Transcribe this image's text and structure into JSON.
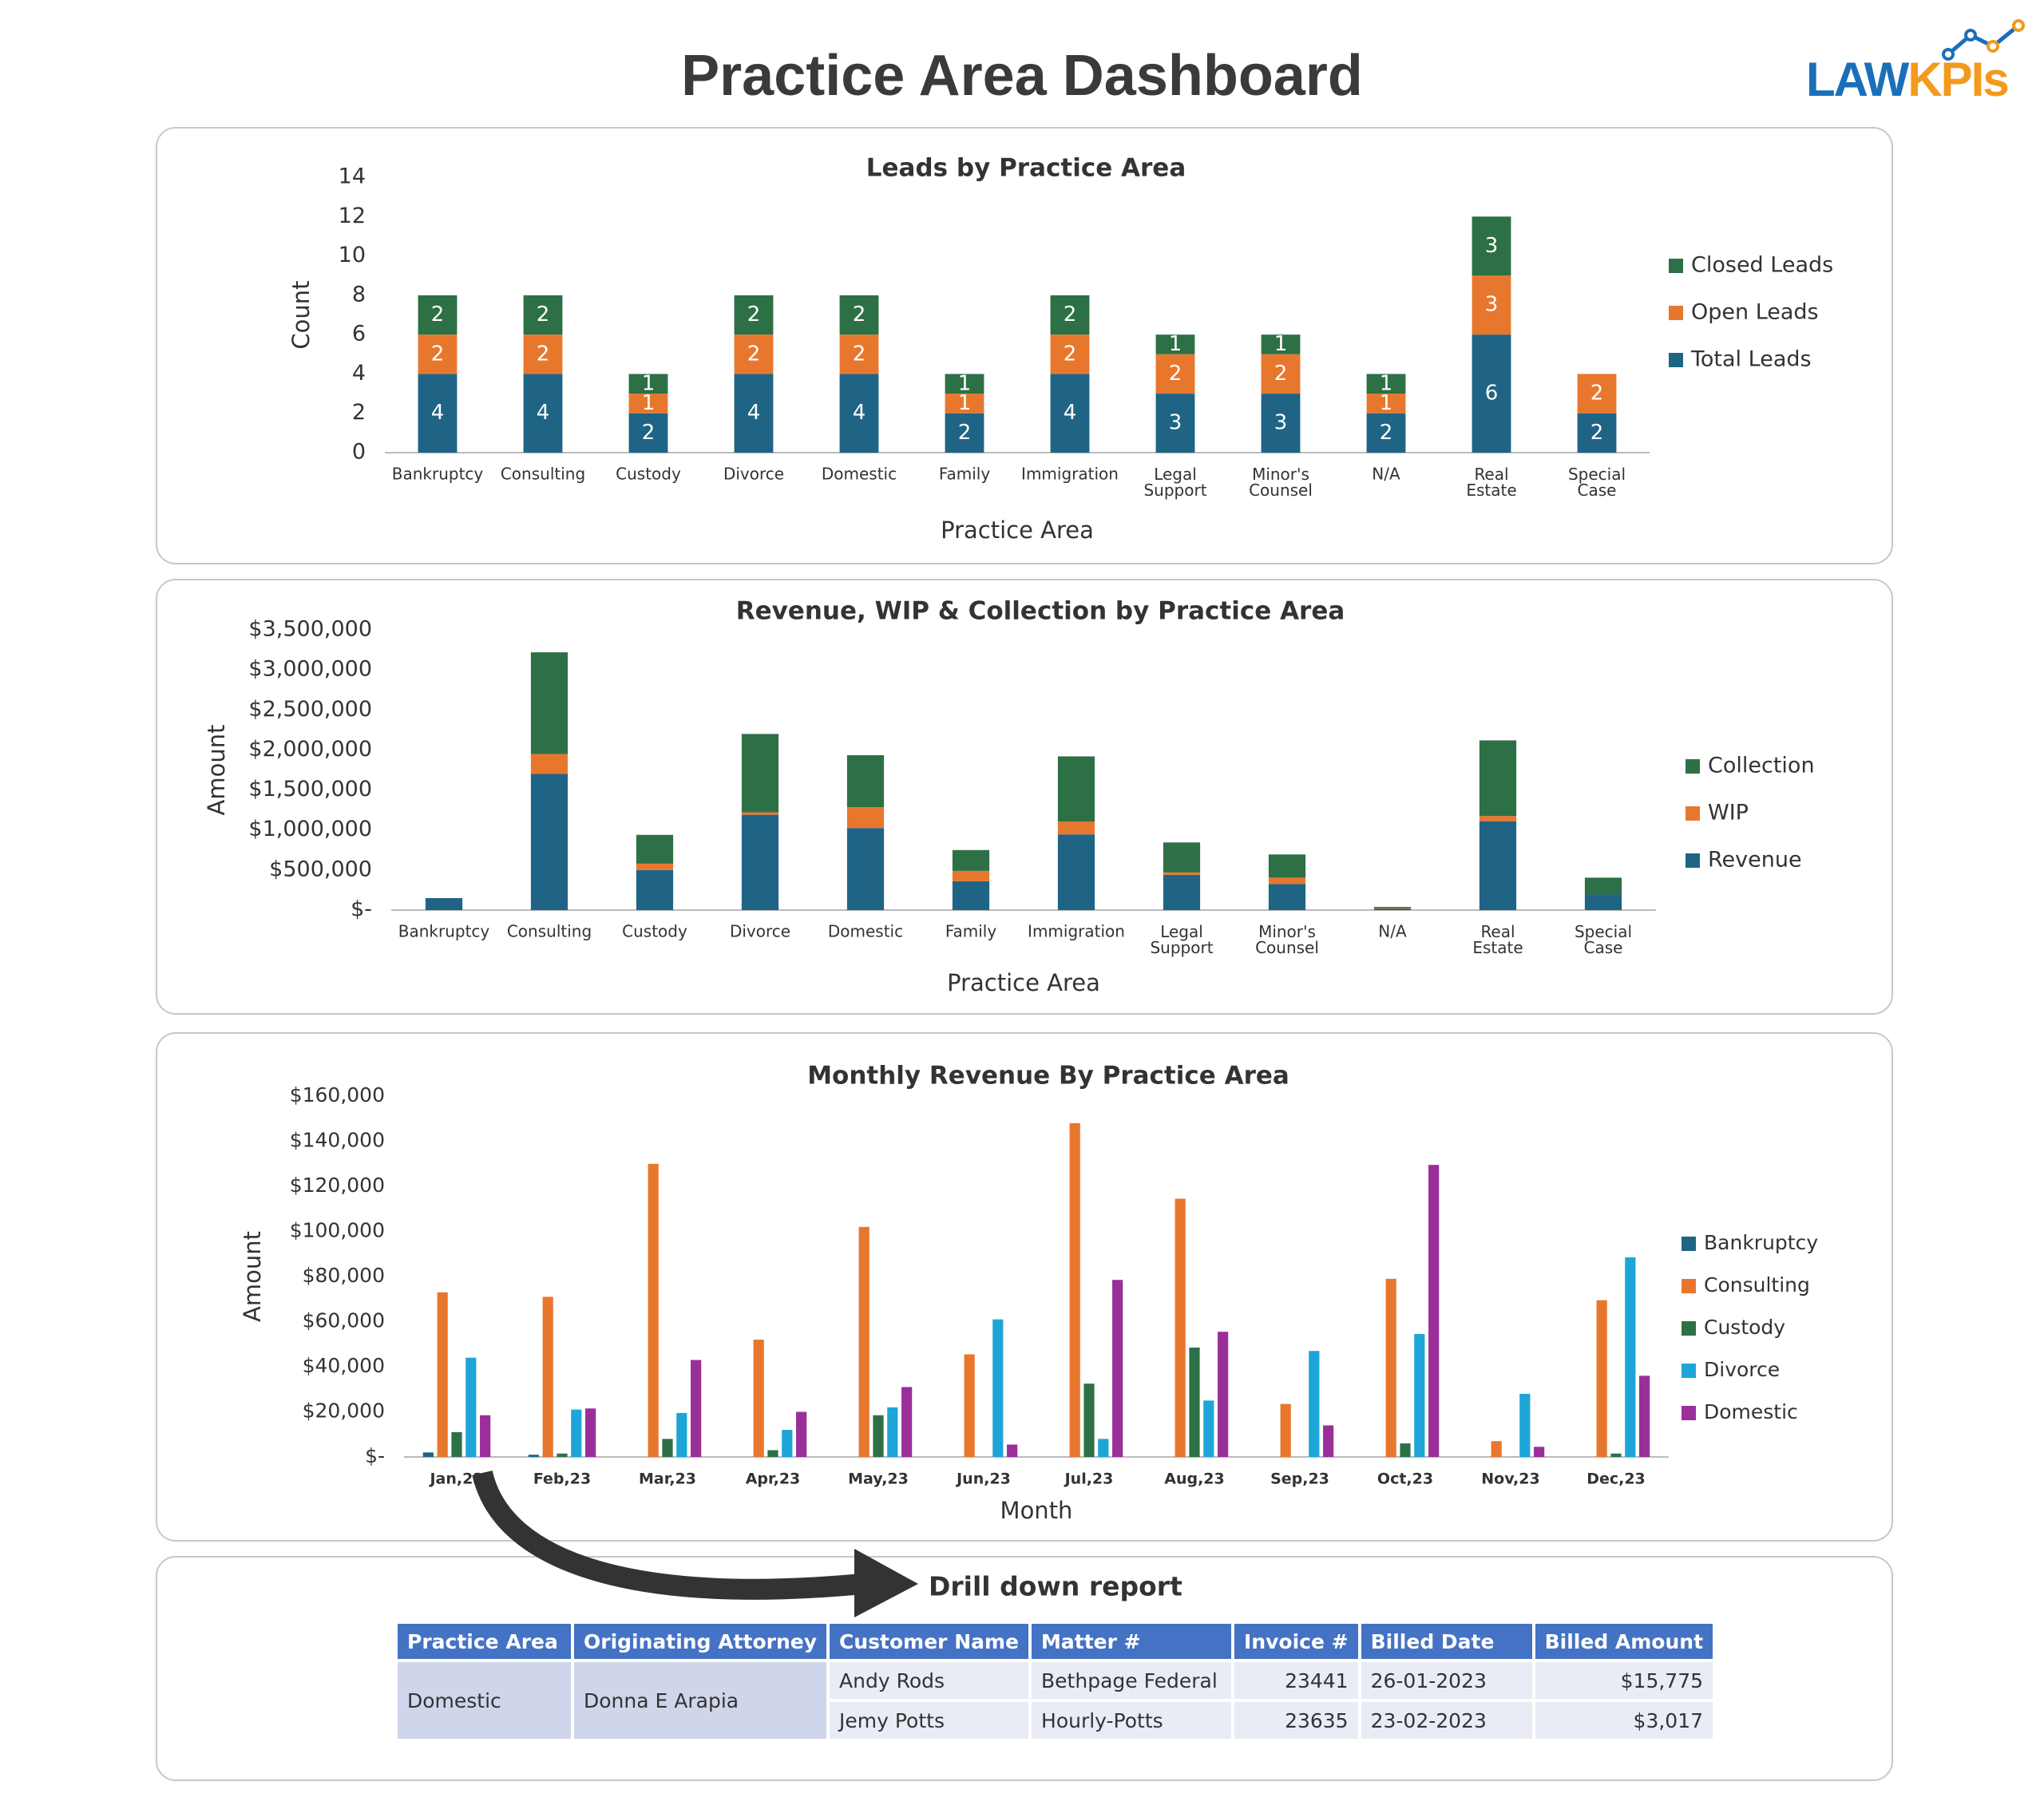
{
  "header": {
    "title": "Practice Area Dashboard",
    "logo": [
      "LAW",
      "KPIs"
    ]
  },
  "chart_data": [
    {
      "type": "bar",
      "stacking": "stacked",
      "show_value_labels": true,
      "legend": "right",
      "title": "Leads by Practice Area",
      "x_label": "Practice Area",
      "y_label": "Count",
      "categories": [
        "Bankruptcy",
        "Consulting",
        "Custody",
        "Divorce",
        "Domestic",
        "Family",
        "Immigration",
        "Legal Support",
        "Minor's Counsel",
        "N/A",
        "Real Estate",
        "Special Case"
      ],
      "series": [
        {
          "name": "Total Leads",
          "color": "#1f6485",
          "values": [
            4,
            4,
            2,
            4,
            4,
            2,
            4,
            3,
            3,
            2,
            6,
            2
          ]
        },
        {
          "name": "Open Leads",
          "color": "#e8772e",
          "values": [
            2,
            2,
            1,
            2,
            2,
            1,
            2,
            2,
            2,
            1,
            3,
            2
          ]
        },
        {
          "name": "Closed Leads",
          "color": "#2e7046",
          "values": [
            2,
            2,
            1,
            2,
            2,
            1,
            2,
            1,
            1,
            1,
            3,
            0
          ]
        }
      ],
      "ylim": [
        0,
        14
      ],
      "yticks": [
        0,
        2,
        4,
        6,
        8,
        10,
        12,
        14
      ],
      "grid": false
    },
    {
      "type": "bar",
      "stacking": "stacked",
      "show_value_labels": false,
      "legend": "right",
      "title": "Revenue, WIP & Collection by Practice Area",
      "x_label": "Practice Area",
      "y_label": "Amount",
      "categories": [
        "Bankruptcy",
        "Consulting",
        "Custody",
        "Divorce",
        "Domestic",
        "Family",
        "Immigration",
        "Legal Support",
        "Minor's Counsel",
        "N/A",
        "Real Estate",
        "Special Case"
      ],
      "series": [
        {
          "name": "Revenue",
          "color": "#1f6485",
          "values": [
            150000,
            1700000,
            500000,
            1190000,
            1025000,
            360000,
            945000,
            440000,
            325000,
            20000,
            1110000,
            195000
          ]
        },
        {
          "name": "WIP",
          "color": "#e8772e",
          "values": [
            0,
            250000,
            80000,
            30000,
            260000,
            130000,
            160000,
            30000,
            80000,
            10000,
            65000,
            0
          ]
        },
        {
          "name": "Collection",
          "color": "#2e7046",
          "values": [
            0,
            1270000,
            360000,
            980000,
            650000,
            260000,
            815000,
            375000,
            290000,
            10000,
            945000,
            210000
          ]
        }
      ],
      "ylim": [
        0,
        3500000
      ],
      "yticks": [
        {
          "value": 0,
          "label": "$-"
        },
        {
          "value": 500000,
          "label": "$500,000"
        },
        {
          "value": 1000000,
          "label": "$1,000,000"
        },
        {
          "value": 1500000,
          "label": "$1,500,000"
        },
        {
          "value": 2000000,
          "label": "$2,000,000"
        },
        {
          "value": 2500000,
          "label": "$2,500,000"
        },
        {
          "value": 3000000,
          "label": "$3,000,000"
        },
        {
          "value": 3500000,
          "label": "$3,500,000"
        }
      ],
      "grid": false
    },
    {
      "type": "bar",
      "stacking": "grouped",
      "show_value_labels": false,
      "legend": "right",
      "title": "Monthly Revenue By Practice Area",
      "x_label": "Month",
      "y_label": "Amount",
      "categories": [
        "Jan,23",
        "Feb,23",
        "Mar,23",
        "Apr,23",
        "May,23",
        "Jun,23",
        "Jul,23",
        "Aug,23",
        "Sep,23",
        "Oct,23",
        "Nov,23",
        "Dec,23"
      ],
      "series": [
        {
          "name": "Bankruptcy",
          "color": "#1f6485",
          "values": [
            2000,
            1000,
            0,
            0,
            0,
            0,
            0,
            0,
            0,
            0,
            0,
            0
          ]
        },
        {
          "name": "Consulting",
          "color": "#e8772e",
          "values": [
            73000,
            71000,
            130000,
            52000,
            102000,
            45500,
            148000,
            114500,
            23500,
            79000,
            7000,
            69500
          ]
        },
        {
          "name": "Custody",
          "color": "#2e7046",
          "values": [
            11000,
            1500,
            8000,
            3000,
            18500,
            0,
            32500,
            48500,
            0,
            6000,
            0,
            1500
          ]
        },
        {
          "name": "Divorce",
          "color": "#1da5d8",
          "values": [
            44000,
            21000,
            19500,
            12000,
            22000,
            61000,
            8000,
            25000,
            47000,
            54500,
            28000,
            88500
          ]
        },
        {
          "name": "Domestic",
          "color": "#9a2f9a",
          "values": [
            18500,
            21500,
            43000,
            20000,
            31000,
            5500,
            78500,
            55500,
            14000,
            129500,
            4500,
            36000
          ]
        }
      ],
      "ylim": [
        0,
        160000
      ],
      "yticks": [
        {
          "value": 0,
          "label": "$-"
        },
        {
          "value": 20000,
          "label": "$20,000"
        },
        {
          "value": 40000,
          "label": "$40,000"
        },
        {
          "value": 60000,
          "label": "$60,000"
        },
        {
          "value": 80000,
          "label": "$80,000"
        },
        {
          "value": 100000,
          "label": "$100,000"
        },
        {
          "value": 120000,
          "label": "$120,000"
        },
        {
          "value": 140000,
          "label": "$140,000"
        },
        {
          "value": 160000,
          "label": "$160,000"
        }
      ],
      "grid": false
    }
  ],
  "drill_down": {
    "title": "Drill down report",
    "columns": [
      "Practice Area",
      "Originating Attorney",
      "Customer Name",
      "Matter #",
      "Invoice #",
      "Billed Date",
      "Billed Amount"
    ],
    "groups": [
      {
        "practice_area": "Domestic",
        "attorney": "Donna E Arapia",
        "rows": [
          [
            "Andy Rods",
            "Bethpage Federal",
            "23441",
            "26-01-2023",
            "$15,775"
          ],
          [
            "Jemy Potts",
            "Hourly-Potts",
            "23635",
            "23-02-2023",
            "$3,017"
          ]
        ]
      }
    ]
  }
}
